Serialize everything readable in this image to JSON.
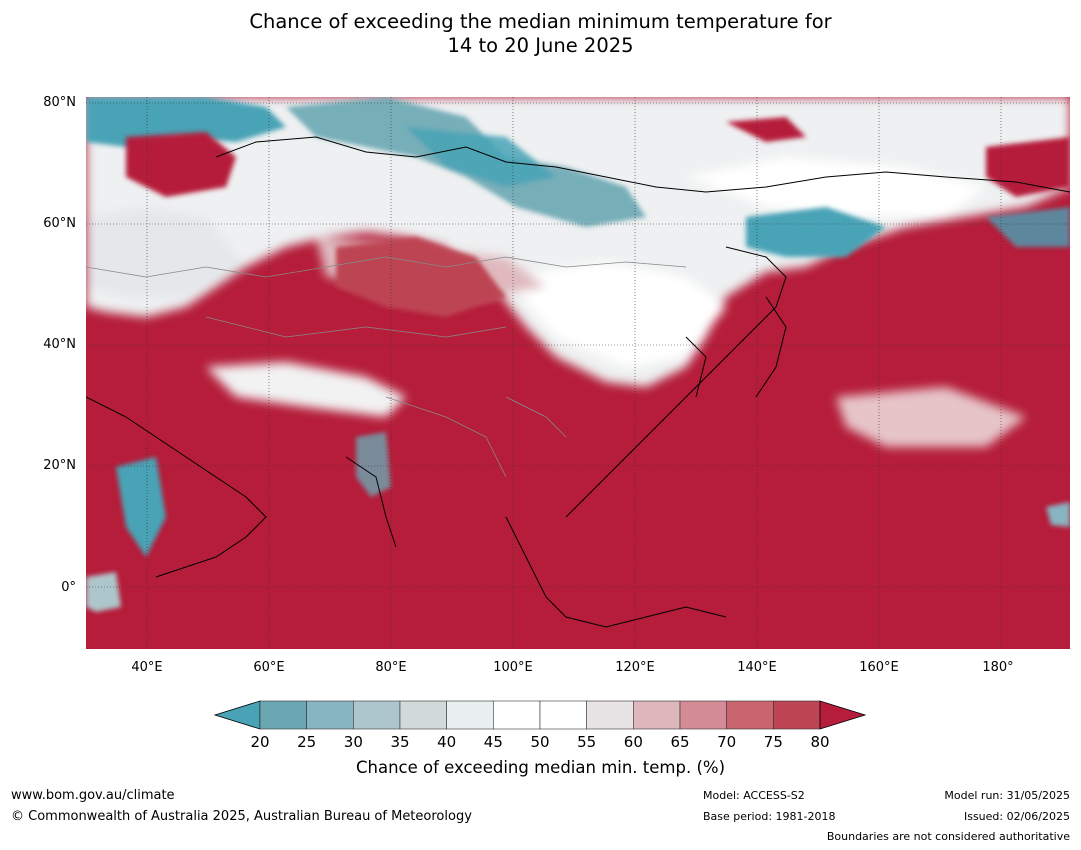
{
  "title_line1": "Chance of exceeding the median minimum temperature for",
  "title_line2": "14 to 20 June 2025",
  "map": {
    "lat_labels": [
      "80°N",
      "60°N",
      "40°N",
      "20°N",
      "0°"
    ],
    "lon_labels": [
      "40°E",
      "60°E",
      "80°E",
      "100°E",
      "120°E",
      "140°E",
      "160°E",
      "180°"
    ],
    "ocean_color": "#b51d3a",
    "high_color": "#b51d3a",
    "low_color": "#48a3b6"
  },
  "colorbar": {
    "ticks": [
      "20",
      "25",
      "30",
      "35",
      "40",
      "45",
      "50",
      "55",
      "60",
      "65",
      "70",
      "75",
      "80"
    ],
    "colors": [
      "#6aa7b3",
      "#87b5c1",
      "#adc6cb",
      "#d1d9db",
      "#e9eef0",
      "#ffffff",
      "#ffffff",
      "#e8e4e5",
      "#deb7bc",
      "#d48c96",
      "#c8656f",
      "#bd4452"
    ],
    "under_color": "#48a3b6",
    "over_color": "#b51d3a",
    "label": "Chance of exceeding median min. temp. (%)"
  },
  "footer": {
    "website": "www.bom.gov.au/climate",
    "copyright": "© Commonwealth of Australia 2025, Australian Bureau of Meteorology",
    "model": "Model: ACCESS-S2",
    "base_period": "Base period: 1981-2018",
    "model_run": "Model run: 31/05/2025",
    "issued": "Issued: 02/06/2025",
    "boundaries": "Boundaries are not considered authoritative"
  }
}
